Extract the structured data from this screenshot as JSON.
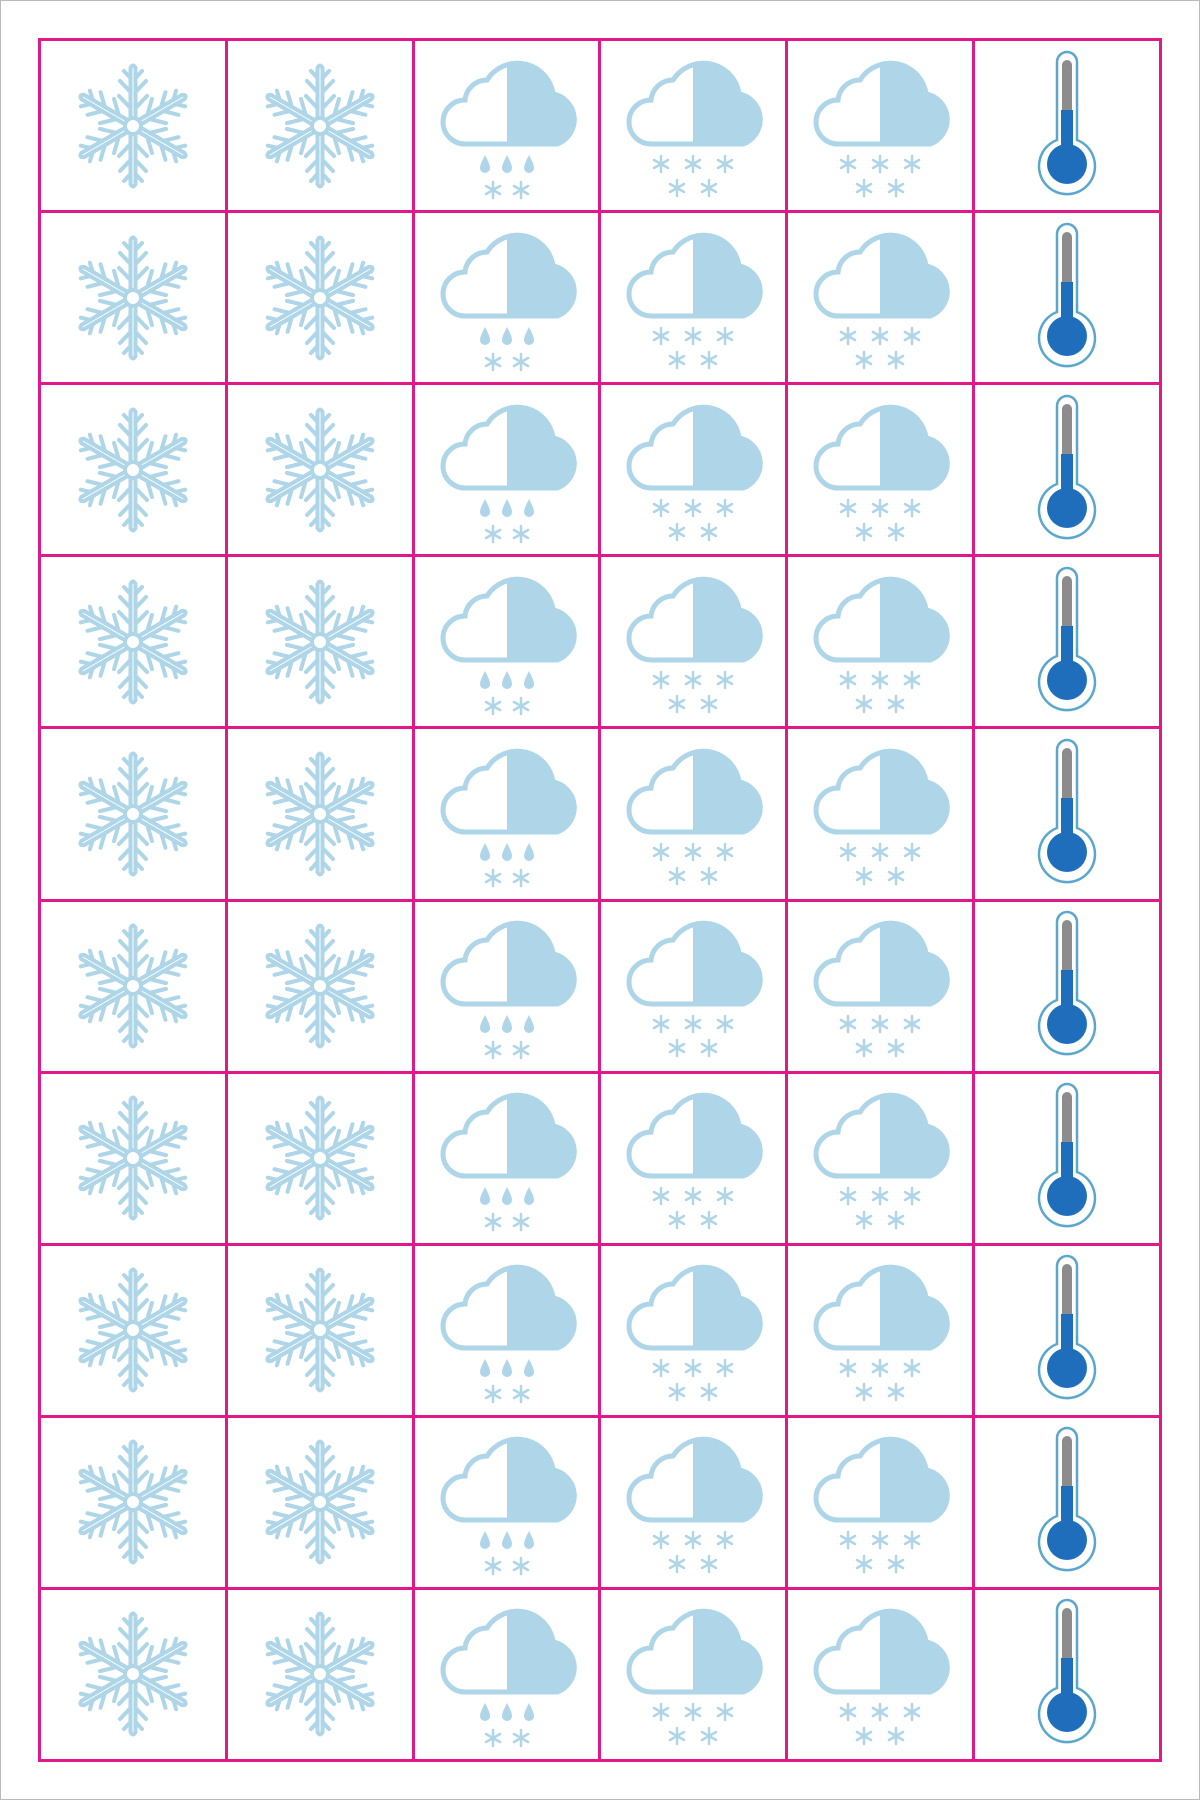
{
  "colors": {
    "grid": "#e0198a",
    "icon_light_blue": "#aed5e8",
    "thermometer_blue": "#1e6ebc",
    "thermometer_gray": "#8c8c8c",
    "thermometer_outline": "#5ba7cc"
  },
  "sheet": {
    "rows": 10,
    "columns": [
      {
        "icon": "snowflake-icon"
      },
      {
        "icon": "snowflake-icon"
      },
      {
        "icon": "sleet-cloud-icon"
      },
      {
        "icon": "snow-cloud-icon"
      },
      {
        "icon": "snow-cloud-icon"
      },
      {
        "icon": "thermometer-icon"
      }
    ]
  }
}
